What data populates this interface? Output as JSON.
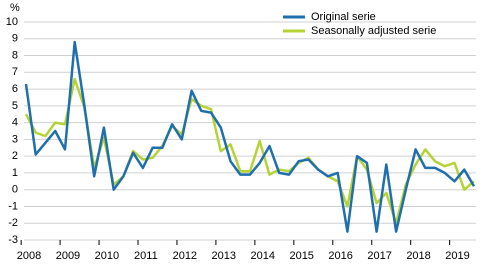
{
  "chart_data": {
    "type": "line",
    "y_label": "%",
    "categories": [
      "2008",
      null,
      null,
      null,
      "2009",
      null,
      null,
      null,
      "2010",
      null,
      null,
      null,
      "2011",
      null,
      null,
      null,
      "2012",
      null,
      null,
      null,
      "2013",
      null,
      null,
      null,
      "2014",
      null,
      null,
      null,
      "2015",
      null,
      null,
      null,
      "2016",
      null,
      null,
      null,
      "2017",
      null,
      null,
      null,
      "2018",
      null,
      null,
      null,
      "2019",
      null,
      null
    ],
    "series": [
      {
        "name": "Original serie",
        "color": "#1f6fae",
        "values": [
          6.3,
          2.1,
          2.8,
          3.5,
          2.4,
          8.8,
          5.0,
          0.8,
          3.7,
          0.0,
          0.8,
          2.2,
          1.3,
          2.5,
          2.5,
          3.9,
          3.0,
          5.9,
          4.7,
          4.6,
          3.7,
          1.7,
          0.9,
          0.9,
          1.6,
          2.6,
          1.0,
          0.9,
          1.7,
          1.8,
          1.2,
          0.8,
          1.0,
          -2.5,
          2.0,
          1.6,
          -2.5,
          1.5,
          -2.5,
          0.0,
          2.4,
          1.3,
          1.3,
          1.0,
          0.5,
          1.2,
          0.2
        ]
      },
      {
        "name": "Seasonally adjusted serie",
        "color": "#b5d334",
        "values": [
          4.5,
          3.4,
          3.2,
          4.0,
          3.9,
          6.6,
          4.9,
          1.3,
          3.1,
          0.3,
          0.8,
          2.3,
          1.8,
          1.9,
          2.6,
          3.8,
          3.3,
          5.4,
          5.0,
          4.8,
          2.3,
          2.7,
          1.1,
          1.1,
          2.9,
          0.9,
          1.2,
          1.1,
          1.6,
          1.9,
          1.2,
          0.8,
          0.5,
          -1.0,
          2.0,
          1.2,
          -0.8,
          -0.2,
          -2.0,
          0.3,
          1.5,
          2.4,
          1.7,
          1.4,
          1.6,
          0.0,
          0.5
        ]
      }
    ],
    "ylim": [
      -3,
      10
    ],
    "yticks": [
      -3,
      -2,
      -1,
      0,
      1,
      2,
      3,
      4,
      5,
      6,
      7,
      8,
      9,
      10
    ],
    "grid": true,
    "legend": "top-right"
  }
}
